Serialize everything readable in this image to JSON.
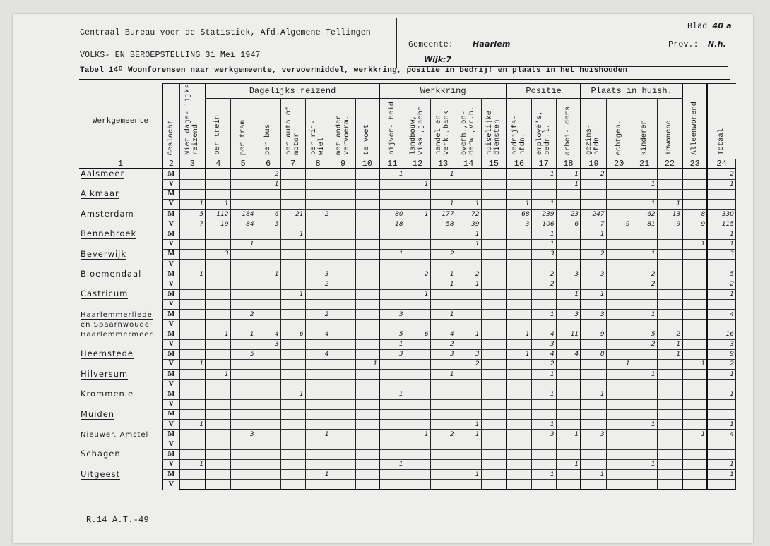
{
  "header": {
    "bureau": "Centraal Bureau voor de Statistiek, Afd.Algemene Tellingen",
    "census": "VOLKS- EN BEROEPSTELLING 31 Mei 1947",
    "gemeente_label": "Gemeente:",
    "gemeente_value": "Haarlem",
    "prov_label": "Prov.:",
    "prov_value": "N.h.",
    "wijk_label": "Wijk:",
    "wijk_value": "7",
    "blad_label": "Blad",
    "blad_value": "40 a",
    "table_title": "Tabel 14ᴮ Woonforensen naar werkgemeente, vervoermiddel, werkkring, positie in bedrijf en plaats in het huishouden"
  },
  "groups": {
    "dagelijks": "Dagelijks reizend",
    "werkkring": "Werkkring",
    "positie": "Positie",
    "plaats": "Plaats in huish."
  },
  "columns": [
    "Werkgemeente",
    "Geslacht",
    "Niet dage-\nlijks reizend",
    "per trein",
    "per tram",
    "per bus",
    "per auto\nof motor",
    "per rij-\nwiel",
    "met ander\nvervoerm.",
    "te voet",
    "nijver-\nheid",
    "landbouw,\nviss.,jacht",
    "handel en\nverk.,bank",
    "overh.,on-\nderw.,vr.b.",
    "huiselijke\ndiensten",
    "bedrijfs-\nhfdn.",
    "employé's,\nbedr.l.",
    "arbei-\nders",
    "gezins-\nhfdn.",
    "echtgen.",
    "kinderen",
    "inwonend",
    "Alleenwonend",
    "Totaal"
  ],
  "column_numbers": [
    "1",
    "2",
    "3",
    "4",
    "5",
    "6",
    "7",
    "8",
    "9",
    "10",
    "11",
    "12",
    "13",
    "14",
    "15",
    "16",
    "17",
    "18",
    "19",
    "20",
    "21",
    "22",
    "23",
    "24"
  ],
  "rows": [
    {
      "name": "Aalsmeer",
      "m": {
        "6": "2",
        "11": "1",
        "13": "1",
        "17": "1",
        "18": "1",
        "19": "2",
        "24": "2"
      },
      "v": {
        "6": "1",
        "12": "1",
        "18": "1",
        "21": "1",
        "24": "1"
      }
    },
    {
      "name": "Alkmaar",
      "m": {},
      "v": {
        "3": "1",
        "4": "1",
        "13": "1",
        "14": "1",
        "16": "1",
        "17": "1",
        "21": "1",
        "22": "1"
      }
    },
    {
      "name": "Amsterdam",
      "m": {
        "3": "5",
        "4": "112",
        "5": "184",
        "6": "6",
        "7": "21",
        "8": "2",
        "11": "80",
        "12": "1",
        "13": "177",
        "14": "72",
        "16": "68",
        "17": "239",
        "18": "23",
        "19": "247",
        "21": "62",
        "22": "13",
        "23": "8",
        "24": "330"
      },
      "v": {
        "3": "7",
        "4": "19",
        "5": "84",
        "6": "5",
        "11": "18",
        "13": "58",
        "14": "39",
        "16": "3",
        "17": "106",
        "18": "6",
        "19": "7",
        "20": "9",
        "21": "81",
        "22": "9",
        "23": "9",
        "24": "115"
      }
    },
    {
      "name": "Bennebroek",
      "m": {
        "7": "1",
        "14": "1",
        "17": "1",
        "19": "1",
        "24": "1"
      },
      "v": {
        "5": "1",
        "14": "1",
        "17": "1",
        "23": "1",
        "24": "1"
      }
    },
    {
      "name": "Beverwijk",
      "m": {
        "4": "3",
        "11": "1",
        "13": "2",
        "17": "3",
        "19": "2",
        "21": "1",
        "24": "3"
      },
      "v": {}
    },
    {
      "name": "Bloemendaal",
      "m": {
        "3": "1",
        "6": "1",
        "8": "3",
        "12": "2",
        "13": "1",
        "14": "2",
        "17": "2",
        "18": "3",
        "19": "3",
        "21": "2",
        "24": "5"
      },
      "v": {
        "8": "2",
        "13": "1",
        "14": "1",
        "17": "2",
        "21": "2",
        "24": "2"
      }
    },
    {
      "name": "Castricum",
      "m": {
        "7": "1",
        "12": "1",
        "18": "1",
        "19": "1",
        "24": "1"
      },
      "v": {}
    },
    {
      "name": "Haarlemmerliede",
      "name2": "en Spaarnwoude",
      "m": {
        "5": "2",
        "8": "2",
        "11": "3",
        "13": "1",
        "17": "1",
        "18": "3",
        "19": "3",
        "21": "1",
        "24": "4"
      },
      "v": {}
    },
    {
      "name": "Haarlemmermeer",
      "m": {
        "4": "1",
        "5": "1",
        "6": "4",
        "7": "6",
        "8": "4",
        "11": "5",
        "12": "6",
        "13": "4",
        "14": "1",
        "16": "1",
        "17": "4",
        "18": "11",
        "19": "9",
        "21": "5",
        "22": "2",
        "24": "16"
      },
      "v": {
        "6": "3",
        "11": "1",
        "13": "2",
        "17": "3",
        "21": "2",
        "22": "1",
        "24": "3"
      }
    },
    {
      "name": "Heemstede",
      "m": {
        "5": "5",
        "8": "4",
        "11": "3",
        "13": "3",
        "14": "3",
        "16": "1",
        "17": "4",
        "18": "4",
        "19": "8",
        "22": "1",
        "24": "9"
      },
      "v": {
        "3": "1",
        "10": "1",
        "14": "2",
        "17": "2",
        "20": "1",
        "23": "1",
        "24": "2"
      }
    },
    {
      "name": "Hilversum",
      "m": {
        "4": "1",
        "13": "1",
        "17": "1",
        "21": "1",
        "24": "1"
      },
      "v": {}
    },
    {
      "name": "Krommenie",
      "m": {
        "7": "1",
        "11": "1",
        "17": "1",
        "19": "1",
        "24": "1"
      },
      "v": {}
    },
    {
      "name": "Muiden",
      "m": {},
      "v": {
        "3": "1",
        "14": "1",
        "17": "1",
        "21": "1",
        "24": "1"
      }
    },
    {
      "name": "Nieuwer. Amstel",
      "m": {
        "5": "3",
        "8": "1",
        "12": "1",
        "13": "2",
        "14": "1",
        "17": "3",
        "18": "1",
        "19": "3",
        "23": "1",
        "24": "4"
      },
      "v": {}
    },
    {
      "name": "Schagen",
      "m": {},
      "v": {
        "3": "1",
        "11": "1",
        "18": "1",
        "21": "1",
        "24": "1"
      }
    },
    {
      "name": "Uitgeest",
      "m": {
        "8": "1",
        "14": "1",
        "17": "1",
        "19": "1",
        "24": "1"
      },
      "v": {}
    }
  ],
  "sex_labels": {
    "m": "M",
    "v": "V"
  },
  "footer": "R.14 A.T.-49"
}
